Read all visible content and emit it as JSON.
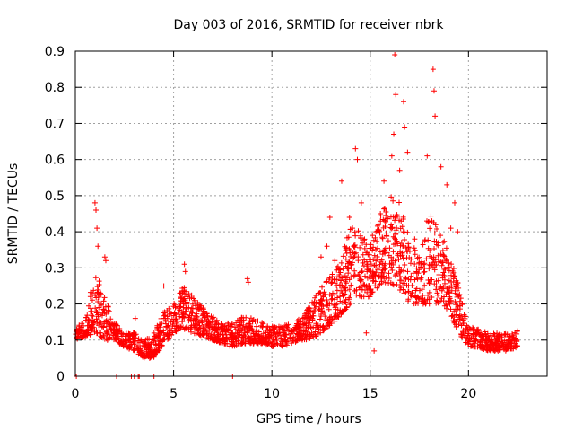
{
  "chart_data": {
    "type": "scatter",
    "title": "Day 003 of 2016, SRMTID for receiver nbrk",
    "xlabel": "GPS time / hours",
    "ylabel": "SRMTID / TECUs",
    "xlim": [
      0,
      24
    ],
    "ylim": [
      0,
      0.9
    ],
    "xticks": [
      0,
      5,
      10,
      15,
      20
    ],
    "xtick_labels": [
      "0",
      "5",
      "10",
      "15",
      "20"
    ],
    "yticks": [
      0,
      0.1,
      0.2,
      0.3,
      0.4,
      0.5,
      0.6,
      0.7,
      0.8,
      0.9
    ],
    "ytick_labels": [
      "0",
      "0.1",
      "0.2",
      "0.3",
      "0.4",
      "0.5",
      "0.6",
      "0.7",
      "0.8",
      "0.9"
    ],
    "grid": true,
    "marker": "+",
    "color": "#ff0000",
    "envelope": [
      [
        0.0,
        0.1,
        0.14
      ],
      [
        0.5,
        0.11,
        0.15
      ],
      [
        1.0,
        0.12,
        0.3
      ],
      [
        1.5,
        0.1,
        0.22
      ],
      [
        2.0,
        0.1,
        0.15
      ],
      [
        2.5,
        0.08,
        0.12
      ],
      [
        3.0,
        0.07,
        0.12
      ],
      [
        3.5,
        0.05,
        0.1
      ],
      [
        4.0,
        0.05,
        0.12
      ],
      [
        4.5,
        0.09,
        0.18
      ],
      [
        5.0,
        0.12,
        0.2
      ],
      [
        5.5,
        0.13,
        0.25
      ],
      [
        6.0,
        0.12,
        0.22
      ],
      [
        6.5,
        0.11,
        0.19
      ],
      [
        7.0,
        0.1,
        0.17
      ],
      [
        7.5,
        0.09,
        0.15
      ],
      [
        8.0,
        0.08,
        0.15
      ],
      [
        8.5,
        0.09,
        0.17
      ],
      [
        9.0,
        0.09,
        0.16
      ],
      [
        9.5,
        0.09,
        0.15
      ],
      [
        10.0,
        0.08,
        0.14
      ],
      [
        10.5,
        0.08,
        0.14
      ],
      [
        11.0,
        0.09,
        0.15
      ],
      [
        11.5,
        0.1,
        0.16
      ],
      [
        12.0,
        0.1,
        0.2
      ],
      [
        12.5,
        0.12,
        0.25
      ],
      [
        13.0,
        0.14,
        0.28
      ],
      [
        13.5,
        0.17,
        0.32
      ],
      [
        14.0,
        0.2,
        0.42
      ],
      [
        14.5,
        0.22,
        0.4
      ],
      [
        15.0,
        0.22,
        0.38
      ],
      [
        15.5,
        0.25,
        0.45
      ],
      [
        16.0,
        0.25,
        0.5
      ],
      [
        16.5,
        0.24,
        0.48
      ],
      [
        17.0,
        0.2,
        0.4
      ],
      [
        17.5,
        0.2,
        0.38
      ],
      [
        18.0,
        0.2,
        0.45
      ],
      [
        18.5,
        0.2,
        0.42
      ],
      [
        19.0,
        0.18,
        0.35
      ],
      [
        19.5,
        0.12,
        0.25
      ],
      [
        20.0,
        0.08,
        0.14
      ],
      [
        20.5,
        0.08,
        0.13
      ],
      [
        21.0,
        0.07,
        0.12
      ],
      [
        21.5,
        0.07,
        0.12
      ],
      [
        22.0,
        0.07,
        0.12
      ],
      [
        22.5,
        0.08,
        0.13
      ]
    ],
    "peaks": [
      [
        1.0,
        0.48
      ],
      [
        1.05,
        0.46
      ],
      [
        1.1,
        0.41
      ],
      [
        1.15,
        0.36
      ],
      [
        1.5,
        0.33
      ],
      [
        1.55,
        0.32
      ],
      [
        3.05,
        0.16
      ],
      [
        4.5,
        0.25
      ],
      [
        5.55,
        0.31
      ],
      [
        5.6,
        0.29
      ],
      [
        8.75,
        0.27
      ],
      [
        8.8,
        0.26
      ],
      [
        12.5,
        0.33
      ],
      [
        12.8,
        0.36
      ],
      [
        12.95,
        0.44
      ],
      [
        13.2,
        0.32
      ],
      [
        13.55,
        0.54
      ],
      [
        13.95,
        0.44
      ],
      [
        14.25,
        0.63
      ],
      [
        14.35,
        0.6
      ],
      [
        14.55,
        0.48
      ],
      [
        15.7,
        0.54
      ],
      [
        16.1,
        0.61
      ],
      [
        16.2,
        0.67
      ],
      [
        16.25,
        0.89
      ],
      [
        16.3,
        0.78
      ],
      [
        16.5,
        0.57
      ],
      [
        16.7,
        0.76
      ],
      [
        16.75,
        0.69
      ],
      [
        16.9,
        0.62
      ],
      [
        17.9,
        0.61
      ],
      [
        18.2,
        0.85
      ],
      [
        18.25,
        0.79
      ],
      [
        18.3,
        0.72
      ],
      [
        18.6,
        0.58
      ],
      [
        18.9,
        0.53
      ],
      [
        19.1,
        0.41
      ],
      [
        19.3,
        0.48
      ],
      [
        19.45,
        0.4
      ],
      [
        14.8,
        0.12
      ],
      [
        15.2,
        0.07
      ]
    ],
    "zero_points": [
      0.05,
      2.1,
      2.85,
      3.0,
      3.2,
      3.25,
      4.0,
      8.0
    ]
  }
}
